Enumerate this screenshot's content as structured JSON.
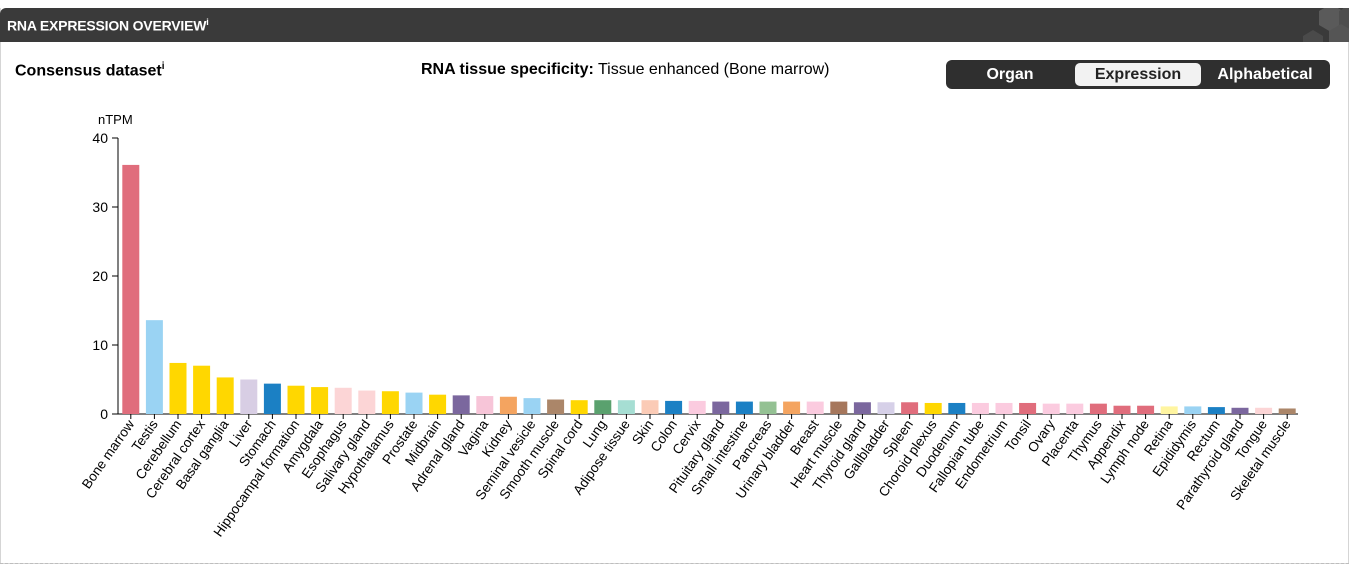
{
  "header": {
    "title": "RNA EXPRESSION OVERVIEW",
    "info_marker": "i"
  },
  "dataset": {
    "label": "Consensus dataset",
    "info_marker": "i"
  },
  "specificity": {
    "key": "RNA tissue specificity:",
    "value": "Tissue enhanced (Bone marrow)"
  },
  "sort_toggle": {
    "options": [
      "Organ",
      "Expression",
      "Alphabetical"
    ],
    "selected": "Expression"
  },
  "chart_data": {
    "type": "bar",
    "ylabel": "nTPM",
    "ylim": [
      0,
      40
    ],
    "yticks": [
      0,
      10,
      20,
      30,
      40
    ],
    "categories": [
      "Bone marrow",
      "Testis",
      "Cerebellum",
      "Cerebral cortex",
      "Basal ganglia",
      "Liver",
      "Stomach",
      "Hippocampal formation",
      "Amygdala",
      "Esophagus",
      "Salivary gland",
      "Hypothalamus",
      "Prostate",
      "Midbrain",
      "Adrenal gland",
      "Vagina",
      "Kidney",
      "Seminal vesicle",
      "Smooth muscle",
      "Spinal cord",
      "Lung",
      "Adipose tissue",
      "Skin",
      "Colon",
      "Cervix",
      "Pituitary gland",
      "Small intestine",
      "Pancreas",
      "Urinary bladder",
      "Breast",
      "Heart muscle",
      "Thyroid gland",
      "Gallbladder",
      "Spleen",
      "Choroid plexus",
      "Duodenum",
      "Fallopian tube",
      "Endometrium",
      "Tonsil",
      "Ovary",
      "Placenta",
      "Thymus",
      "Appendix",
      "Lymph node",
      "Retina",
      "Epididymis",
      "Rectum",
      "Parathyroid gland",
      "Tongue",
      "Skeletal muscle"
    ],
    "values": [
      36.1,
      13.6,
      7.4,
      7.0,
      5.3,
      5.0,
      4.4,
      4.1,
      3.9,
      3.8,
      3.4,
      3.3,
      3.1,
      2.8,
      2.7,
      2.6,
      2.5,
      2.3,
      2.1,
      2.0,
      2.0,
      2.0,
      2.0,
      1.9,
      1.9,
      1.8,
      1.8,
      1.8,
      1.8,
      1.8,
      1.8,
      1.7,
      1.7,
      1.7,
      1.6,
      1.6,
      1.6,
      1.6,
      1.6,
      1.5,
      1.5,
      1.5,
      1.2,
      1.2,
      1.1,
      1.1,
      1.0,
      0.9,
      0.9,
      0.8
    ],
    "colors": [
      "#e06d7c",
      "#9ad3f3",
      "#ffd700",
      "#ffd700",
      "#ffd700",
      "#d8cee4",
      "#1b80c4",
      "#ffd700",
      "#ffd700",
      "#fcd5d6",
      "#fcd5d6",
      "#ffd700",
      "#9ad3f3",
      "#ffd700",
      "#7b679e",
      "#f7c5d8",
      "#f4a460",
      "#9ad3f3",
      "#ab8669",
      "#ffd700",
      "#5aa16e",
      "#a6ded3",
      "#fbcbb6",
      "#1b80c4",
      "#fbcbdf",
      "#7b679e",
      "#1b80c4",
      "#94c193",
      "#f4a460",
      "#fbcbdf",
      "#a6775c",
      "#7b679e",
      "#d6d0e8",
      "#e06d7c",
      "#ffd700",
      "#1b80c4",
      "#fbcbdf",
      "#fbcbdf",
      "#e06d7c",
      "#fbcbdf",
      "#fbcbdf",
      "#e06d7c",
      "#e06d7c",
      "#e06d7c",
      "#fff5a0",
      "#9ad3f3",
      "#1b80c4",
      "#7b679e",
      "#fcd5d6",
      "#ab8669"
    ]
  }
}
